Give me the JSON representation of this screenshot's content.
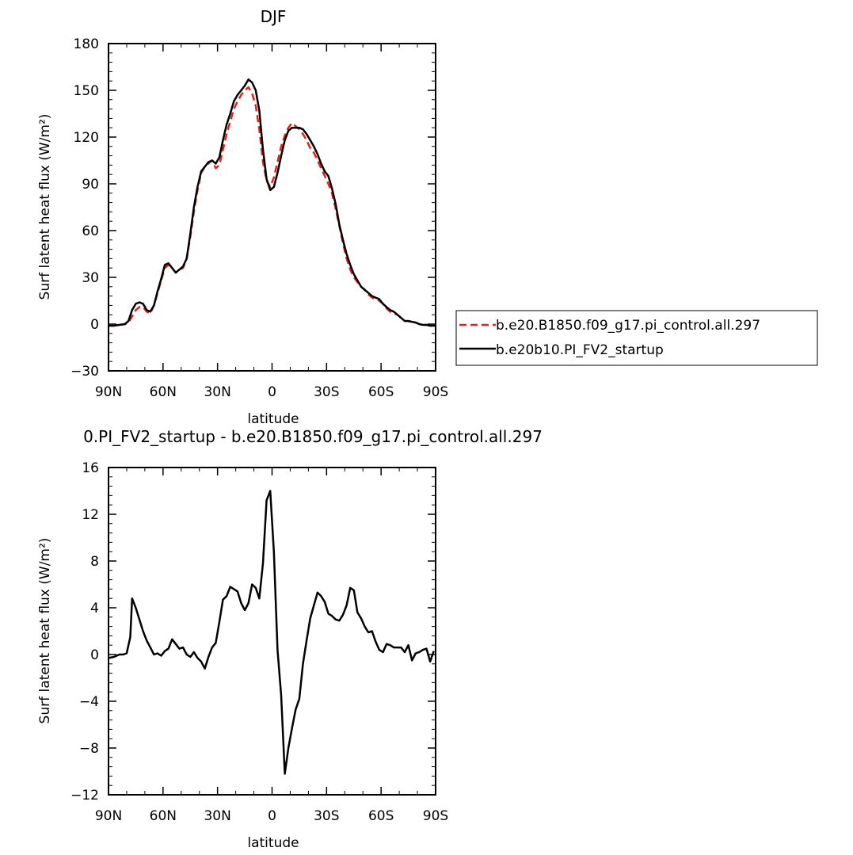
{
  "chart_data": [
    {
      "type": "line",
      "title": "DJF",
      "xlabel": "latitude",
      "ylabel": "Surf latent heat flux (W/m²)",
      "xlim": [
        90,
        -90
      ],
      "ylim": [
        -30,
        180
      ],
      "yticks": [
        -30,
        0,
        30,
        60,
        90,
        120,
        150,
        180
      ],
      "xticks": [
        90,
        60,
        30,
        0,
        -30,
        -60,
        -90
      ],
      "xtick_labels": [
        "90N",
        "60N",
        "30N",
        "0",
        "30S",
        "60S",
        "90S"
      ],
      "x": [
        90,
        87,
        84,
        81,
        79,
        77,
        75,
        73,
        71,
        69,
        67,
        65,
        63,
        61,
        59,
        57,
        55,
        53,
        51,
        49,
        47,
        45,
        43,
        41,
        39,
        37,
        35,
        33,
        31,
        29,
        27,
        25,
        23,
        21,
        19,
        17,
        15,
        13,
        11,
        9,
        7,
        5,
        3,
        1,
        -1,
        -3,
        -5,
        -7,
        -9,
        -11,
        -13,
        -15,
        -17,
        -19,
        -21,
        -23,
        -25,
        -27,
        -29,
        -31,
        -33,
        -35,
        -37,
        -39,
        -41,
        -43,
        -45,
        -47,
        -49,
        -51,
        -53,
        -55,
        -57,
        -59,
        -61,
        -63,
        -65,
        -67,
        -69,
        -71,
        -73,
        -75,
        -77,
        -79,
        -81,
        -83,
        -85,
        -87,
        -90
      ],
      "series": [
        {
          "name": "b.e20.B1850.f09_g17.pi_control.all.297",
          "color": "#e8201a",
          "dash": "dashed",
          "values": [
            -1,
            -1,
            -0.5,
            0,
            1,
            5,
            9,
            11,
            11,
            8,
            7,
            12,
            20,
            28,
            36,
            38,
            36,
            33,
            35,
            36,
            42,
            56,
            72,
            86,
            97,
            101,
            103,
            105,
            100,
            102,
            112,
            122,
            130,
            138,
            143,
            147,
            150,
            152,
            148,
            140,
            125,
            104,
            92,
            88,
            94,
            104,
            114,
            121,
            126,
            129,
            127,
            125,
            122,
            118,
            113,
            110,
            105,
            100,
            95,
            90,
            84,
            74,
            63,
            52,
            42,
            35,
            30,
            27,
            24,
            22,
            19,
            17,
            16,
            15,
            13,
            10,
            8,
            7,
            6,
            4,
            2,
            2,
            1,
            1,
            0,
            -0.5,
            -0.5,
            -1,
            -1
          ]
        },
        {
          "name": "b.e20b10.PI_FV2_startup",
          "color": "#000000",
          "dash": "solid",
          "values": [
            -1,
            -1,
            -0.5,
            0,
            2,
            9,
            13,
            14,
            13,
            9,
            8,
            12,
            21,
            29,
            38,
            39,
            36,
            33,
            35,
            37,
            42,
            58,
            75,
            88,
            98,
            101,
            104,
            105,
            103,
            107,
            118,
            128,
            135,
            143,
            147,
            150,
            153,
            157,
            155,
            150,
            137,
            112,
            93,
            86,
            88,
            97,
            108,
            118,
            124,
            126,
            126,
            126,
            125,
            122,
            118,
            114,
            109,
            103,
            98,
            95,
            87,
            77,
            64,
            54,
            45,
            38,
            32,
            28,
            24,
            22,
            20,
            18,
            17,
            16,
            13,
            11,
            9,
            8,
            6,
            4,
            2,
            2,
            1.5,
            1,
            0,
            -0.5,
            -0.5,
            -1,
            -1
          ]
        }
      ],
      "legend_position": "right"
    },
    {
      "type": "line",
      "title": "0.PI_FV2_startup - b.e20.B1850.f09_g17.pi_control.all.297",
      "xlabel": "latitude",
      "ylabel": "Surf latent heat flux (W/m²)",
      "xlim": [
        90,
        -90
      ],
      "ylim": [
        -12,
        16
      ],
      "yticks": [
        -12,
        -8,
        -4,
        0,
        4,
        8,
        12,
        16
      ],
      "xticks": [
        90,
        60,
        30,
        0,
        -30,
        -60,
        -90
      ],
      "xtick_labels": [
        "90N",
        "60N",
        "30N",
        "0",
        "30S",
        "60S",
        "90S"
      ],
      "x": [
        90,
        87,
        84,
        82,
        80,
        78,
        77,
        75,
        73,
        71,
        69,
        67,
        65,
        63,
        61,
        59,
        57,
        55,
        53,
        51,
        49,
        47,
        45,
        43,
        41,
        39,
        37,
        35,
        33,
        31,
        29,
        27,
        25,
        23,
        21,
        19,
        17,
        15,
        13,
        11,
        9,
        7,
        5,
        3,
        1,
        -1,
        -3,
        -5,
        -7,
        -9,
        -11,
        -13,
        -15,
        -17,
        -19,
        -21,
        -23,
        -25,
        -27,
        -29,
        -31,
        -33,
        -35,
        -37,
        -39,
        -41,
        -43,
        -45,
        -47,
        -49,
        -51,
        -53,
        -55,
        -57,
        -59,
        -61,
        -63,
        -65,
        -67,
        -69,
        -71,
        -73,
        -75,
        -77,
        -79,
        -81,
        -83,
        -85,
        -87,
        -89
      ],
      "series": [
        {
          "name": "",
          "color": "#000000",
          "dash": "solid",
          "values": [
            -0.3,
            -0.2,
            0,
            0,
            0.1,
            1.5,
            4.8,
            4.0,
            3.0,
            2.0,
            1.2,
            0.6,
            0,
            0.1,
            -0.1,
            0.3,
            0.5,
            1.3,
            0.9,
            0.5,
            0.6,
            0,
            -0.2,
            0.2,
            -0.3,
            -0.6,
            -1.2,
            -0.2,
            0.6,
            1.0,
            2.8,
            4.7,
            5.0,
            5.8,
            5.6,
            5.4,
            4.4,
            3.8,
            4.4,
            6.0,
            5.7,
            4.8,
            7.8,
            13.2,
            14.0,
            8.8,
            0.4,
            -3.5,
            -10.2,
            -8.0,
            -6.3,
            -4.7,
            -3.8,
            -0.8,
            1.2,
            3.1,
            4.2,
            5.3,
            5.0,
            4.5,
            3.5,
            3.3,
            3.0,
            2.9,
            3.4,
            4.2,
            5.7,
            5.5,
            3.6,
            3.1,
            2.4,
            1.9,
            2.0,
            1.1,
            0.4,
            0.2,
            0.9,
            0.8,
            0.6,
            0.6,
            0.6,
            0.2,
            0.8,
            -0.5,
            0.1,
            0.2,
            0.4,
            0.5,
            -0.6,
            0.3
          ]
        }
      ]
    }
  ]
}
